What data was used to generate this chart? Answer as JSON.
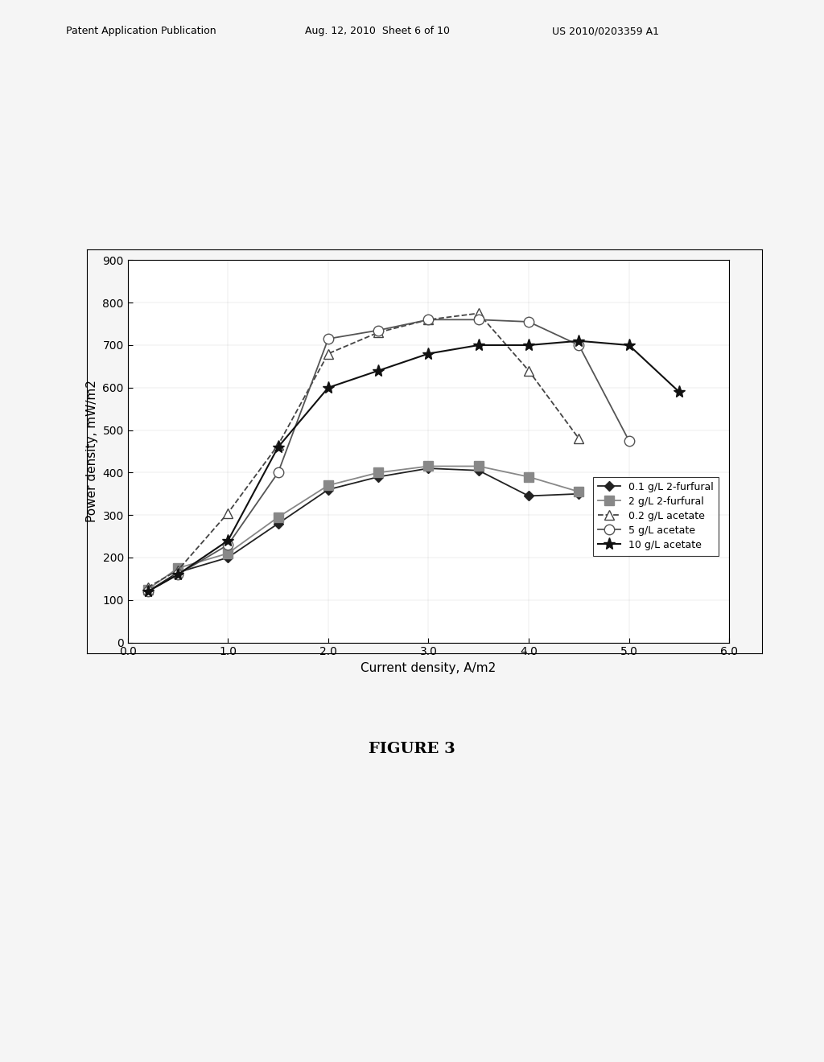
{
  "series": {
    "0.1 g/L 2-furfural": {
      "x": [
        0.2,
        0.5,
        1.0,
        1.5,
        2.0,
        2.5,
        3.0,
        3.5,
        4.0,
        4.5
      ],
      "y": [
        120,
        165,
        200,
        280,
        360,
        390,
        410,
        405,
        345,
        350
      ],
      "marker": "D",
      "markersize": 6,
      "color": "#222222",
      "linestyle": "-",
      "linewidth": 1.3,
      "fillstyle": "full"
    },
    "2 g/L 2-furfural": {
      "x": [
        0.2,
        0.5,
        1.0,
        1.5,
        2.0,
        2.5,
        3.0,
        3.5,
        4.0,
        4.5
      ],
      "y": [
        125,
        175,
        210,
        295,
        370,
        400,
        415,
        415,
        390,
        355
      ],
      "marker": "s",
      "markersize": 8,
      "color": "#888888",
      "linestyle": "-",
      "linewidth": 1.3,
      "fillstyle": "full"
    },
    "0.2 g/L acetate": {
      "x": [
        0.2,
        0.5,
        1.0,
        1.5,
        2.0,
        2.5,
        3.0,
        3.5,
        4.0,
        4.5
      ],
      "y": [
        130,
        170,
        305,
        465,
        680,
        730,
        760,
        775,
        640,
        480
      ],
      "marker": "^",
      "markersize": 9,
      "color": "#444444",
      "linestyle": "--",
      "linewidth": 1.3,
      "fillstyle": "none"
    },
    "5 g/L acetate": {
      "x": [
        0.2,
        0.5,
        1.0,
        1.5,
        2.0,
        2.5,
        3.0,
        3.5,
        4.0,
        4.5,
        5.0
      ],
      "y": [
        120,
        160,
        230,
        400,
        715,
        735,
        760,
        760,
        755,
        700,
        475
      ],
      "marker": "o",
      "markersize": 9,
      "color": "#555555",
      "linestyle": "-",
      "linewidth": 1.3,
      "fillstyle": "none"
    },
    "10 g/L acetate": {
      "x": [
        0.2,
        0.5,
        1.0,
        1.5,
        2.0,
        2.5,
        3.0,
        3.5,
        4.0,
        4.5,
        5.0,
        5.5
      ],
      "y": [
        120,
        160,
        240,
        460,
        600,
        640,
        680,
        700,
        700,
        710,
        700,
        590
      ],
      "marker": "*",
      "markersize": 11,
      "color": "#111111",
      "linestyle": "-",
      "linewidth": 1.5,
      "fillstyle": "full"
    }
  },
  "xlabel": "Current density, A/m2",
  "ylabel": "Power density, mW/m2",
  "xlim": [
    0.0,
    6.0
  ],
  "ylim": [
    0,
    900
  ],
  "xticks": [
    0.0,
    1.0,
    2.0,
    3.0,
    4.0,
    5.0,
    6.0
  ],
  "yticks": [
    0,
    100,
    200,
    300,
    400,
    500,
    600,
    700,
    800,
    900
  ],
  "legend_order": [
    "0.1 g/L 2-furfural",
    "2 g/L 2-furfural",
    "0.2 g/L acetate",
    "5 g/L acetate",
    "10 g/L acetate"
  ],
  "figure_title": "FIGURE 3",
  "header_left": "Patent Application Publication",
  "header_center": "Aug. 12, 2010  Sheet 6 of 10",
  "header_right": "US 2010/0203359 A1",
  "background_color": "#f5f5f5",
  "plot_bg_color": "#ffffff"
}
